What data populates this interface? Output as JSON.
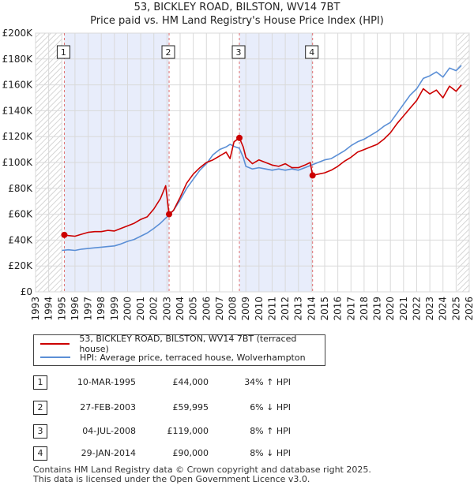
{
  "chart_data": {
    "type": "line",
    "title": "53, BICKLEY ROAD, BILSTON, WV14 7BT",
    "subtitle": "Price paid vs. HM Land Registry's House Price Index (HPI)",
    "xlim": [
      1993,
      2026
    ],
    "ylim": [
      0,
      200000
    ],
    "x_ticks": [
      "1993",
      "1994",
      "1995",
      "1996",
      "1997",
      "1998",
      "1999",
      "2000",
      "2001",
      "2002",
      "2003",
      "2004",
      "2005",
      "2006",
      "2007",
      "2008",
      "2009",
      "2010",
      "2011",
      "2012",
      "2013",
      "2014",
      "2015",
      "2016",
      "2017",
      "2018",
      "2019",
      "2020",
      "2021",
      "2022",
      "2023",
      "2024",
      "2025",
      "2026"
    ],
    "y_ticks": [
      {
        "value": 0,
        "label": "£0"
      },
      {
        "value": 20000,
        "label": "£20K"
      },
      {
        "value": 40000,
        "label": "£40K"
      },
      {
        "value": 60000,
        "label": "£60K"
      },
      {
        "value": 80000,
        "label": "£80K"
      },
      {
        "value": 100000,
        "label": "£100K"
      },
      {
        "value": 120000,
        "label": "£120K"
      },
      {
        "value": 140000,
        "label": "£140K"
      },
      {
        "value": 160000,
        "label": "£160K"
      },
      {
        "value": 180000,
        "label": "£180K"
      },
      {
        "value": 200000,
        "label": "£200K"
      }
    ],
    "shaded_ranges": [
      [
        1995.19,
        2003.16
      ],
      [
        2008.51,
        2014.08
      ]
    ],
    "hatched_ranges": [
      [
        1993,
        1995.0
      ],
      [
        2025.1,
        2026
      ]
    ],
    "series": [
      {
        "name": "53, BICKLEY ROAD, BILSTON, WV14 7BT (terraced house)",
        "color": "#cc0000",
        "points": [
          [
            1995.19,
            44000
          ],
          [
            1995.5,
            43500
          ],
          [
            1996.0,
            43000
          ],
          [
            1996.5,
            44500
          ],
          [
            1997.0,
            46000
          ],
          [
            1997.5,
            46500
          ],
          [
            1998.0,
            46500
          ],
          [
            1998.5,
            47500
          ],
          [
            1999.0,
            47000
          ],
          [
            1999.5,
            49000
          ],
          [
            2000.0,
            51000
          ],
          [
            2000.5,
            53000
          ],
          [
            2001.0,
            56000
          ],
          [
            2001.5,
            58000
          ],
          [
            2002.0,
            64000
          ],
          [
            2002.5,
            72000
          ],
          [
            2002.9,
            82000
          ],
          [
            2003.16,
            59995
          ],
          [
            2003.5,
            63000
          ],
          [
            2004.0,
            73000
          ],
          [
            2004.5,
            84000
          ],
          [
            2005.0,
            91000
          ],
          [
            2005.5,
            96000
          ],
          [
            2006.0,
            100000
          ],
          [
            2006.5,
            102000
          ],
          [
            2007.0,
            105000
          ],
          [
            2007.5,
            108000
          ],
          [
            2007.8,
            103000
          ],
          [
            2008.1,
            116000
          ],
          [
            2008.51,
            119000
          ],
          [
            2008.8,
            112000
          ],
          [
            2009.0,
            104000
          ],
          [
            2009.5,
            99000
          ],
          [
            2010.0,
            102000
          ],
          [
            2010.5,
            100000
          ],
          [
            2011.0,
            98000
          ],
          [
            2011.5,
            97000
          ],
          [
            2012.0,
            99000
          ],
          [
            2012.5,
            96000
          ],
          [
            2013.0,
            96000
          ],
          [
            2013.5,
            98000
          ],
          [
            2013.9,
            100000
          ],
          [
            2014.08,
            90000
          ],
          [
            2014.5,
            91000
          ],
          [
            2015.0,
            92000
          ],
          [
            2015.5,
            94000
          ],
          [
            2016.0,
            97000
          ],
          [
            2016.5,
            101000
          ],
          [
            2017.0,
            104000
          ],
          [
            2017.5,
            108000
          ],
          [
            2018.0,
            110000
          ],
          [
            2018.5,
            112000
          ],
          [
            2019.0,
            114000
          ],
          [
            2019.5,
            118000
          ],
          [
            2020.0,
            123000
          ],
          [
            2020.5,
            130000
          ],
          [
            2021.0,
            136000
          ],
          [
            2021.5,
            142000
          ],
          [
            2022.0,
            148000
          ],
          [
            2022.5,
            157000
          ],
          [
            2023.0,
            153000
          ],
          [
            2023.5,
            156000
          ],
          [
            2024.0,
            150000
          ],
          [
            2024.5,
            159000
          ],
          [
            2025.0,
            155000
          ],
          [
            2025.4,
            160000
          ]
        ]
      },
      {
        "name": "HPI: Average price, terraced house, Wolverhampton",
        "color": "#5b8fd6",
        "points": [
          [
            1995.0,
            32000
          ],
          [
            1995.5,
            32500
          ],
          [
            1996.0,
            32000
          ],
          [
            1996.5,
            33000
          ],
          [
            1997.0,
            33500
          ],
          [
            1997.5,
            34000
          ],
          [
            1998.0,
            34500
          ],
          [
            1998.5,
            35000
          ],
          [
            1999.0,
            35500
          ],
          [
            1999.5,
            37000
          ],
          [
            2000.0,
            39000
          ],
          [
            2000.5,
            40500
          ],
          [
            2001.0,
            43000
          ],
          [
            2001.5,
            45500
          ],
          [
            2002.0,
            49000
          ],
          [
            2002.5,
            53000
          ],
          [
            2003.0,
            58000
          ],
          [
            2003.5,
            63000
          ],
          [
            2004.0,
            71000
          ],
          [
            2004.5,
            80000
          ],
          [
            2005.0,
            87000
          ],
          [
            2005.5,
            94000
          ],
          [
            2006.0,
            99000
          ],
          [
            2006.5,
            106000
          ],
          [
            2007.0,
            110000
          ],
          [
            2007.5,
            112000
          ],
          [
            2007.8,
            114000
          ],
          [
            2008.2,
            112000
          ],
          [
            2008.5,
            111000
          ],
          [
            2008.8,
            104000
          ],
          [
            2009.0,
            97000
          ],
          [
            2009.5,
            95000
          ],
          [
            2010.0,
            96000
          ],
          [
            2010.5,
            95000
          ],
          [
            2011.0,
            94000
          ],
          [
            2011.5,
            95000
          ],
          [
            2012.0,
            94000
          ],
          [
            2012.5,
            95000
          ],
          [
            2013.0,
            94000
          ],
          [
            2013.5,
            96000
          ],
          [
            2014.0,
            98000
          ],
          [
            2014.5,
            100000
          ],
          [
            2015.0,
            102000
          ],
          [
            2015.5,
            103000
          ],
          [
            2016.0,
            106000
          ],
          [
            2016.5,
            109000
          ],
          [
            2017.0,
            113000
          ],
          [
            2017.5,
            116000
          ],
          [
            2018.0,
            118000
          ],
          [
            2018.5,
            121000
          ],
          [
            2019.0,
            124000
          ],
          [
            2019.5,
            128000
          ],
          [
            2020.0,
            131000
          ],
          [
            2020.5,
            138000
          ],
          [
            2021.0,
            145000
          ],
          [
            2021.5,
            152000
          ],
          [
            2022.0,
            157000
          ],
          [
            2022.5,
            165000
          ],
          [
            2023.0,
            167000
          ],
          [
            2023.5,
            170000
          ],
          [
            2024.0,
            166000
          ],
          [
            2024.5,
            173000
          ],
          [
            2025.0,
            171000
          ],
          [
            2025.4,
            175000
          ]
        ]
      }
    ],
    "sale_markers": [
      {
        "label": "1",
        "x": 1995.19,
        "y": 44000
      },
      {
        "label": "2",
        "x": 2003.16,
        "y": 59995
      },
      {
        "label": "3",
        "x": 2008.51,
        "y": 119000
      },
      {
        "label": "4",
        "x": 2014.08,
        "y": 90000
      }
    ]
  },
  "legend": {
    "items": [
      {
        "label": "53, BICKLEY ROAD, BILSTON, WV14 7BT (terraced house)",
        "color": "#cc0000"
      },
      {
        "label": "HPI: Average price, terraced house, Wolverhampton",
        "color": "#5b8fd6"
      }
    ]
  },
  "sales": [
    {
      "num": "1",
      "date": "10-MAR-1995",
      "price": "£44,000",
      "hpi": "34% ↑ HPI"
    },
    {
      "num": "2",
      "date": "27-FEB-2003",
      "price": "£59,995",
      "hpi": "6% ↓ HPI"
    },
    {
      "num": "3",
      "date": "04-JUL-2008",
      "price": "£119,000",
      "hpi": "8% ↑ HPI"
    },
    {
      "num": "4",
      "date": "29-JAN-2014",
      "price": "£90,000",
      "hpi": "8% ↓ HPI"
    }
  ],
  "footer": {
    "line1": "Contains HM Land Registry data © Crown copyright and database right 2025.",
    "line2": "This data is licensed under the Open Government Licence v3.0."
  }
}
